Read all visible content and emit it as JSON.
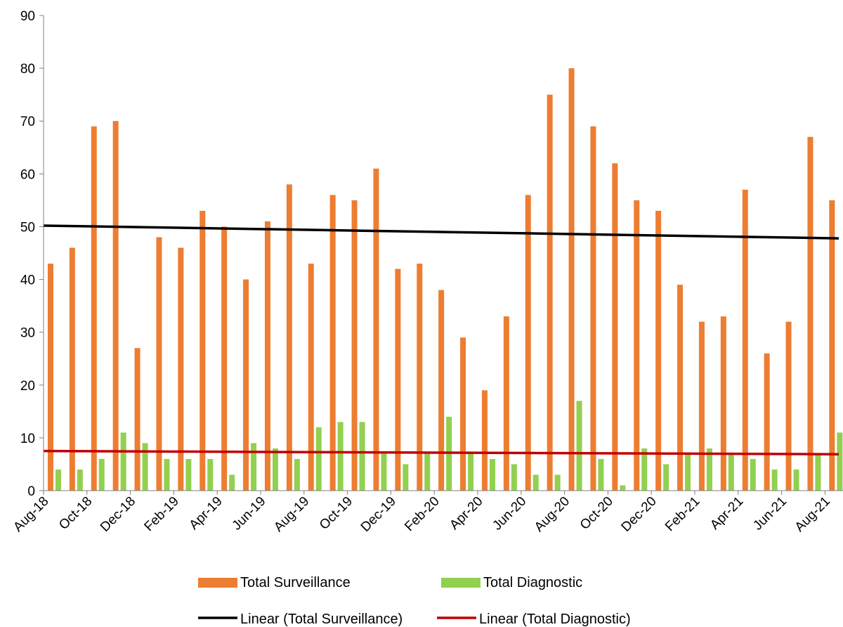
{
  "chart_data": {
    "type": "bar",
    "title": "",
    "xlabel": "",
    "ylabel": "",
    "ylim": [
      0,
      90
    ],
    "yticks": [
      0,
      10,
      20,
      30,
      40,
      50,
      60,
      70,
      80,
      90
    ],
    "grid": false,
    "legend_position": "bottom",
    "categories": [
      "Aug-18",
      "Sep-18",
      "Oct-18",
      "Nov-18",
      "Dec-18",
      "Jan-19",
      "Feb-19",
      "Mar-19",
      "Apr-19",
      "May-19",
      "Jun-19",
      "Jul-19",
      "Aug-19",
      "Sep-19",
      "Oct-19",
      "Nov-19",
      "Dec-19",
      "Jan-20",
      "Feb-20",
      "Mar-20",
      "Apr-20",
      "May-20",
      "Jun-20",
      "Jul-20",
      "Aug-20",
      "Sep-20",
      "Oct-20",
      "Nov-20",
      "Dec-20",
      "Jan-21",
      "Feb-21",
      "Mar-21",
      "Apr-21",
      "May-21",
      "Jun-21",
      "Jul-21",
      "Aug-21"
    ],
    "tick_labels": [
      "Aug-18",
      "Oct-18",
      "Dec-18",
      "Feb-19",
      "Apr-19",
      "Jun-19",
      "Aug-19",
      "Oct-19",
      "Dec-19",
      "Feb-20",
      "Apr-20",
      "Jun-20",
      "Aug-20",
      "Oct-20",
      "Dec-20",
      "Feb-21",
      "Apr-21",
      "Jun-21",
      "Aug-21"
    ],
    "series": [
      {
        "name": "Total Surveillance",
        "color": "#ED7D31",
        "values": [
          43,
          46,
          69,
          70,
          27,
          48,
          46,
          53,
          50,
          40,
          51,
          58,
          43,
          56,
          55,
          61,
          42,
          43,
          38,
          29,
          19,
          33,
          56,
          75,
          80,
          69,
          62,
          55,
          53,
          39,
          32,
          33,
          57,
          26,
          32,
          67,
          55
        ]
      },
      {
        "name": "Total Diagnostic",
        "color": "#92D050",
        "values": [
          4,
          4,
          6,
          11,
          9,
          6,
          6,
          6,
          3,
          9,
          8,
          6,
          12,
          13,
          13,
          7,
          5,
          7,
          14,
          7,
          6,
          5,
          3,
          3,
          17,
          6,
          1,
          8,
          5,
          7,
          8,
          7,
          6,
          4,
          4,
          7,
          11
        ]
      }
    ],
    "trendlines": [
      {
        "name": "Linear (Total Surveillance)",
        "color": "#000000",
        "start": 50.2,
        "end": 47.8
      },
      {
        "name": "Linear (Total Diagnostic)",
        "color": "#C00000",
        "start": 7.5,
        "end": 6.9
      }
    ]
  }
}
